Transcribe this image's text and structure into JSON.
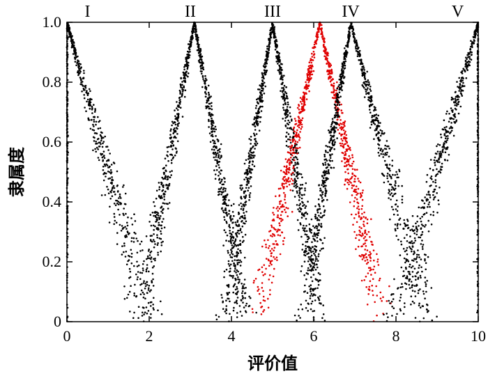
{
  "chart_data": {
    "type": "scatter",
    "xlabel": "评价值",
    "ylabel": "隶属度",
    "xlim": [
      0,
      10
    ],
    "ylim": [
      0,
      1.0
    ],
    "x_ticks": [
      0,
      2,
      4,
      6,
      8,
      10
    ],
    "y_ticks": [
      0,
      0.2,
      0.4,
      0.6,
      0.8,
      1.0
    ],
    "x_tick_labels": [
      "0",
      "2",
      "4",
      "6",
      "8",
      "10"
    ],
    "y_tick_labels": [
      "0",
      "0.2",
      "0.4",
      "0.6",
      "0.8",
      "1.0"
    ],
    "grid": false,
    "region_labels": [
      {
        "text": "I",
        "x": 0.5
      },
      {
        "text": "II",
        "x": 3.0
      },
      {
        "text": "III",
        "x": 5.0
      },
      {
        "text": "IV",
        "x": 6.9
      },
      {
        "text": "V",
        "x": 9.5
      }
    ],
    "series": [
      {
        "color": "#000000",
        "peak_x": 0.0,
        "left_support": 0.0,
        "right_support": 2.6
      },
      {
        "color": "#000000",
        "peak_x": 3.1,
        "left_support": 1.4,
        "right_support": 4.7
      },
      {
        "color": "#000000",
        "peak_x": 5.0,
        "left_support": 3.5,
        "right_support": 6.5
      },
      {
        "color": "#e00000",
        "peak_x": 6.15,
        "left_support": 4.2,
        "right_support": 8.1
      },
      {
        "color": "#000000",
        "peak_x": 6.9,
        "left_support": 5.4,
        "right_support": 9.3
      },
      {
        "color": "#000000",
        "peak_x": 10.0,
        "left_support": 7.4,
        "right_support": 10.0
      }
    ]
  }
}
